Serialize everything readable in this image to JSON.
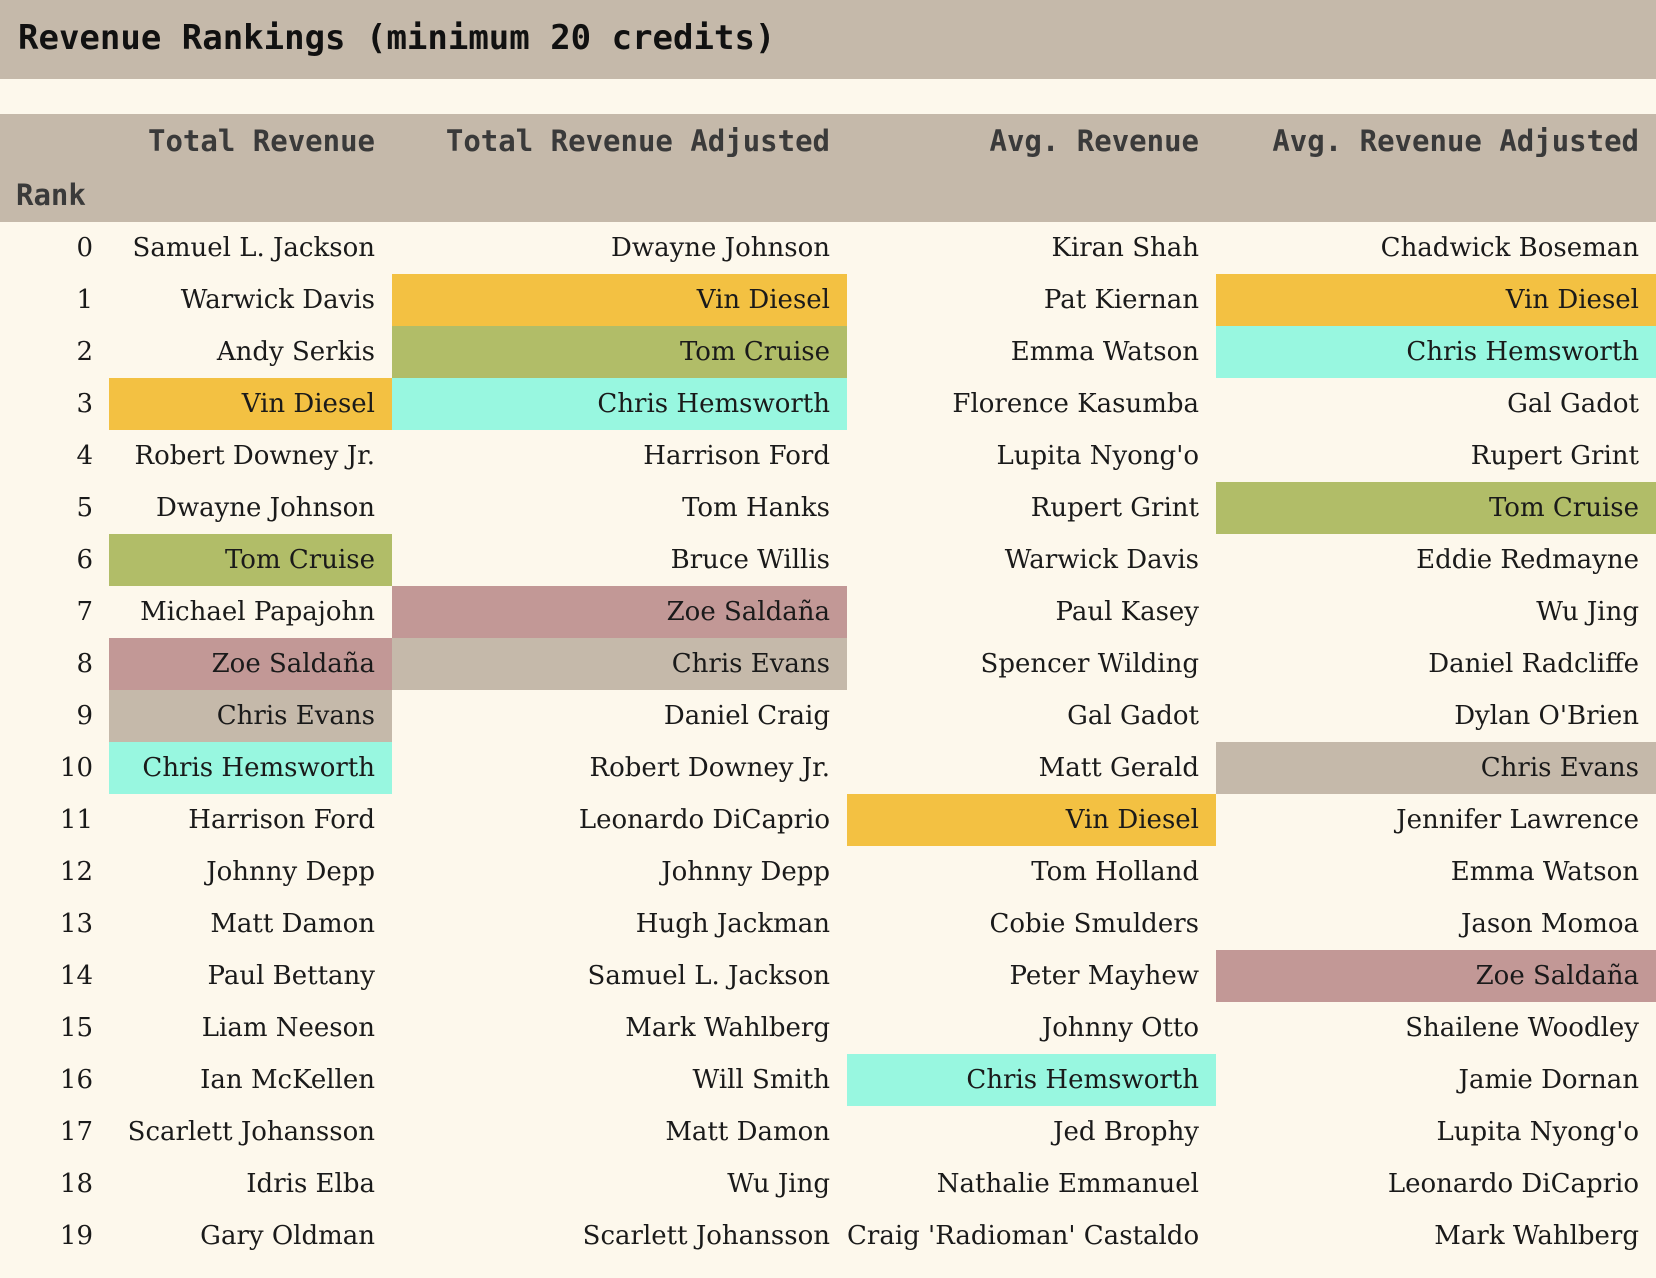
{
  "title": "Revenue Rankings (minimum 20 credits)",
  "table": {
    "index_label": "Rank",
    "columns": [
      "Total Revenue",
      "Total Revenue Adjusted",
      "Avg. Revenue",
      "Avg. Revenue Adjusted"
    ],
    "highlight_colors": {
      "Vin Diesel": "#f3c142",
      "Tom Cruise": "#b1bd68",
      "Chris Hemsworth": "#98f7e0",
      "Zoe Saldaña": "#c29896",
      "Chris Evans": "#c5b9aa"
    },
    "rows": [
      {
        "rank": "0",
        "cells": [
          "Samuel L. Jackson",
          "Dwayne Johnson",
          "Kiran Shah",
          "Chadwick Boseman"
        ]
      },
      {
        "rank": "1",
        "cells": [
          "Warwick Davis",
          "Vin Diesel",
          "Pat Kiernan",
          "Vin Diesel"
        ]
      },
      {
        "rank": "2",
        "cells": [
          "Andy Serkis",
          "Tom Cruise",
          "Emma Watson",
          "Chris Hemsworth"
        ]
      },
      {
        "rank": "3",
        "cells": [
          "Vin Diesel",
          "Chris Hemsworth",
          "Florence Kasumba",
          "Gal Gadot"
        ]
      },
      {
        "rank": "4",
        "cells": [
          "Robert Downey Jr.",
          "Harrison Ford",
          "Lupita Nyong'o",
          "Rupert Grint"
        ]
      },
      {
        "rank": "5",
        "cells": [
          "Dwayne Johnson",
          "Tom Hanks",
          "Rupert Grint",
          "Tom Cruise"
        ]
      },
      {
        "rank": "6",
        "cells": [
          "Tom Cruise",
          "Bruce Willis",
          "Warwick Davis",
          "Eddie Redmayne"
        ]
      },
      {
        "rank": "7",
        "cells": [
          "Michael Papajohn",
          "Zoe Saldaña",
          "Paul Kasey",
          "Wu Jing"
        ]
      },
      {
        "rank": "8",
        "cells": [
          "Zoe Saldaña",
          "Chris Evans",
          "Spencer Wilding",
          "Daniel Radcliffe"
        ]
      },
      {
        "rank": "9",
        "cells": [
          "Chris Evans",
          "Daniel Craig",
          "Gal Gadot",
          "Dylan O'Brien"
        ]
      },
      {
        "rank": "10",
        "cells": [
          "Chris Hemsworth",
          "Robert Downey Jr.",
          "Matt Gerald",
          "Chris Evans"
        ]
      },
      {
        "rank": "11",
        "cells": [
          "Harrison Ford",
          "Leonardo DiCaprio",
          "Vin Diesel",
          "Jennifer Lawrence"
        ]
      },
      {
        "rank": "12",
        "cells": [
          "Johnny Depp",
          "Johnny Depp",
          "Tom Holland",
          "Emma Watson"
        ]
      },
      {
        "rank": "13",
        "cells": [
          "Matt Damon",
          "Hugh Jackman",
          "Cobie Smulders",
          "Jason Momoa"
        ]
      },
      {
        "rank": "14",
        "cells": [
          "Paul Bettany",
          "Samuel L. Jackson",
          "Peter Mayhew",
          "Zoe Saldaña"
        ]
      },
      {
        "rank": "15",
        "cells": [
          "Liam Neeson",
          "Mark Wahlberg",
          "Johnny Otto",
          "Shailene Woodley"
        ]
      },
      {
        "rank": "16",
        "cells": [
          "Ian McKellen",
          "Will Smith",
          "Chris Hemsworth",
          "Jamie Dornan"
        ]
      },
      {
        "rank": "17",
        "cells": [
          "Scarlett Johansson",
          "Matt Damon",
          "Jed Brophy",
          "Lupita Nyong'o"
        ]
      },
      {
        "rank": "18",
        "cells": [
          "Idris Elba",
          "Wu Jing",
          "Nathalie Emmanuel",
          "Leonardo DiCaprio"
        ]
      },
      {
        "rank": "19",
        "cells": [
          "Gary Oldman",
          "Scarlett Johansson",
          "Craig 'Radioman' Castaldo",
          "Mark Wahlberg"
        ]
      }
    ]
  }
}
